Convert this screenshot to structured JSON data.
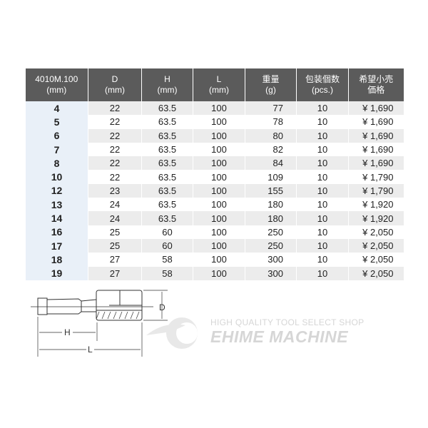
{
  "table": {
    "headers": [
      {
        "line1": "4010M.100",
        "line2": "(mm)"
      },
      {
        "line1": "D",
        "line2": "(mm)"
      },
      {
        "line1": "H",
        "line2": "(mm)"
      },
      {
        "line1": "L",
        "line2": "(mm)"
      },
      {
        "line1": "重量",
        "line2": "(g)"
      },
      {
        "line1": "包装個数",
        "line2": "(pcs.)"
      },
      {
        "line1": "希望小売",
        "line2": "価格"
      }
    ],
    "rows": [
      [
        "4",
        "22",
        "63.5",
        "100",
        "77",
        "10",
        "¥ 1,690"
      ],
      [
        "5",
        "22",
        "63.5",
        "100",
        "78",
        "10",
        "¥ 1,690"
      ],
      [
        "6",
        "22",
        "63.5",
        "100",
        "80",
        "10",
        "¥ 1,690"
      ],
      [
        "7",
        "22",
        "63.5",
        "100",
        "82",
        "10",
        "¥ 1,690"
      ],
      [
        "8",
        "22",
        "63.5",
        "100",
        "84",
        "10",
        "¥ 1,690"
      ],
      [
        "10",
        "22",
        "63.5",
        "100",
        "109",
        "10",
        "¥ 1,790"
      ],
      [
        "12",
        "23",
        "63.5",
        "100",
        "155",
        "10",
        "¥ 1,790"
      ],
      [
        "13",
        "24",
        "63.5",
        "100",
        "180",
        "10",
        "¥ 1,920"
      ],
      [
        "14",
        "24",
        "63.5",
        "100",
        "180",
        "10",
        "¥ 1,920"
      ],
      [
        "16",
        "25",
        "60",
        "100",
        "250",
        "10",
        "¥ 2,050"
      ],
      [
        "17",
        "25",
        "60",
        "100",
        "250",
        "10",
        "¥ 2,050"
      ],
      [
        "18",
        "27",
        "58",
        "100",
        "300",
        "10",
        "¥ 2,050"
      ],
      [
        "19",
        "27",
        "58",
        "100",
        "300",
        "10",
        "¥ 2,050"
      ]
    ]
  },
  "diagram": {
    "label_d": "D",
    "label_h": "H",
    "label_l": "L"
  },
  "watermark": {
    "line1": "HIGH QUALITY TOOL SELECT SHOP",
    "line2": "EHIME MACHINE"
  },
  "colors": {
    "header_bg": "#5b5b5b",
    "row_alt": "#ececec",
    "size_col": "#e9f0f8"
  }
}
